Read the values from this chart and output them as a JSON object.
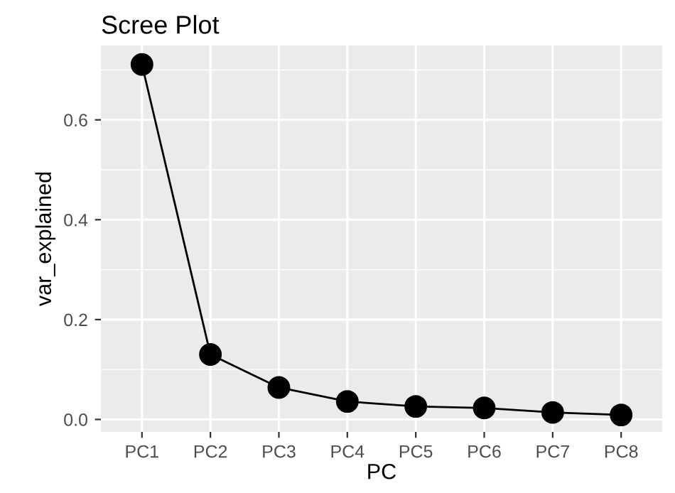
{
  "chart_data": {
    "type": "line",
    "title": "Scree Plot",
    "xlabel": "PC",
    "ylabel": "var_explained",
    "categories": [
      "PC1",
      "PC2",
      "PC3",
      "PC4",
      "PC5",
      "PC6",
      "PC7",
      "PC8"
    ],
    "series": [
      {
        "color": "#000000",
        "values": [
          0.711,
          0.13,
          0.064,
          0.036,
          0.026,
          0.023,
          0.014,
          0.009
        ]
      }
    ],
    "ylim": [
      -0.025,
      0.749
    ],
    "yticks": [
      {
        "value": 0,
        "label": "0.0"
      },
      {
        "value": 0.1,
        "label": null
      },
      {
        "value": 0.2,
        "label": "0.2"
      },
      {
        "value": 0.3,
        "label": null
      },
      {
        "value": 0.4,
        "label": "0.4"
      },
      {
        "value": 0.5,
        "label": null
      },
      {
        "value": 0.6,
        "label": "0.6"
      },
      {
        "value": 0.7,
        "label": null
      }
    ],
    "grid": true,
    "marker": "circle",
    "line_style": "solid",
    "legend": false
  }
}
